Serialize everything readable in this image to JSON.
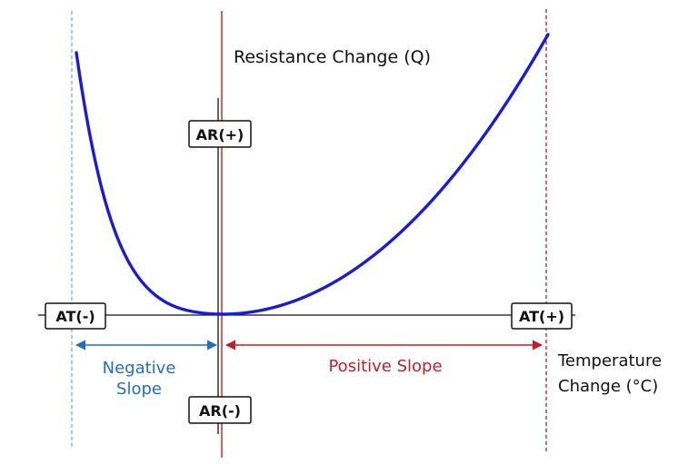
{
  "labels": {
    "y_axis": "Resistance Change (Q)",
    "x_axis_line1": "Temperature",
    "x_axis_line2": "Change (°C)",
    "negative_line1": "Negative",
    "negative_line2": "Slope",
    "positive": "Positive Slope"
  },
  "boxes": {
    "ar_plus": "AR(+)",
    "ar_minus": "AR(-)",
    "at_minus": "AT(-)",
    "at_plus": "AT(+)"
  },
  "colors": {
    "curve": "#1a1adc",
    "axis": "#111111",
    "positive": "#c21e26",
    "negative": "#1f6fc4",
    "dashed_right": "#b0302c",
    "dashed_left": "#7a9cc8"
  }
}
